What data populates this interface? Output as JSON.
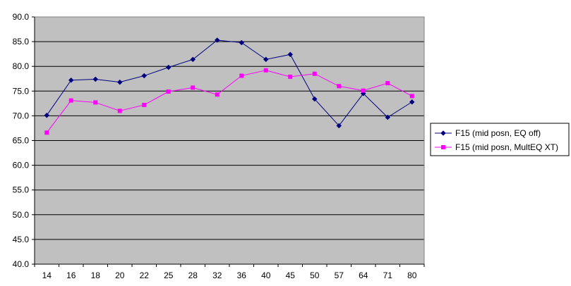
{
  "chart_data": {
    "type": "line",
    "title": "",
    "xlabel": "",
    "ylabel": "",
    "categories": [
      "14",
      "16",
      "18",
      "20",
      "22",
      "25",
      "28",
      "32",
      "36",
      "40",
      "45",
      "50",
      "57",
      "64",
      "71",
      "80"
    ],
    "ylim": [
      40,
      90
    ],
    "yticks": [
      "40.0",
      "45.0",
      "50.0",
      "55.0",
      "60.0",
      "65.0",
      "70.0",
      "75.0",
      "80.0",
      "85.0",
      "90.0"
    ],
    "grid": "horizontal",
    "plot_background": "#C0C0C0",
    "legend_position": "right",
    "series": [
      {
        "name": "F15 (mid posn, EQ off)",
        "color": "#000080",
        "marker": "diamond",
        "values": [
          70.1,
          77.2,
          77.4,
          76.8,
          78.1,
          79.8,
          81.4,
          85.3,
          84.8,
          81.4,
          82.4,
          73.4,
          68.0,
          74.5,
          69.7,
          72.8
        ]
      },
      {
        "name": "F15 (mid posn, MultEQ XT)",
        "color": "#FF00FF",
        "marker": "square",
        "values": [
          66.6,
          73.1,
          72.7,
          71.0,
          72.2,
          74.9,
          75.7,
          74.3,
          78.1,
          79.2,
          77.9,
          78.5,
          76.0,
          75.1,
          76.6,
          74.0
        ]
      }
    ]
  }
}
